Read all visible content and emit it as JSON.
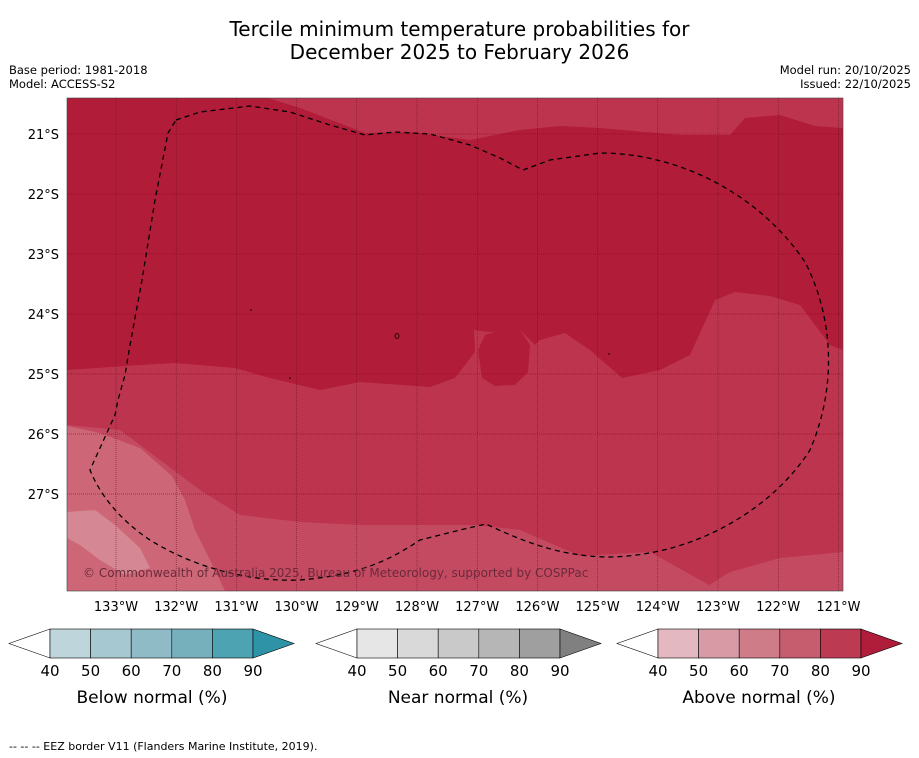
{
  "title_line1": "Tercile minimum temperature probabilities for",
  "title_line2": "December 2025 to February 2026",
  "base_period": "Base period: 1981-2018",
  "model": "Model: ACCESS-S2",
  "model_run": "Model run: 20/10/2025",
  "issued": "Issued: 22/10/2025",
  "copyright": "© Commonwealth of Australia 2025, Bureau of Meteorology, supported by COSPPac",
  "lat_labels": [
    "21°S",
    "22°S",
    "23°S",
    "24°S",
    "25°S",
    "26°S",
    "27°S"
  ],
  "lon_labels": [
    "133°W",
    "132°W",
    "131°W",
    "130°W",
    "129°W",
    "128°W",
    "127°W",
    "126°W",
    "125°W",
    "124°W",
    "123°W",
    "122°W",
    "121°W"
  ],
  "legends": [
    {
      "label": "Below normal (%)",
      "ticks": [
        "40",
        "50",
        "60",
        "70",
        "80",
        "90"
      ],
      "colors": [
        "#bfd5dc",
        "#a6c8d0",
        "#8ebbc6",
        "#76b0bd",
        "#4ea3b2",
        "#2e93a6"
      ]
    },
    {
      "label": "Near normal (%)",
      "ticks": [
        "40",
        "50",
        "60",
        "70",
        "80",
        "90"
      ],
      "colors": [
        "#e6e6e6",
        "#d9d9d9",
        "#c9c9c9",
        "#b6b6b6",
        "#9f9f9f",
        "#808080"
      ]
    },
    {
      "label": "Above normal (%)",
      "ticks": [
        "40",
        "50",
        "60",
        "70",
        "80",
        "90"
      ],
      "colors": [
        "#e4b8c1",
        "#d89aa5",
        "#cf7c89",
        "#c65d6e",
        "#bc3a52",
        "#b01d3a"
      ]
    }
  ],
  "map_colors": {
    "band80": "#b11c38",
    "band70": "#bd344f",
    "band60": "#c44a62",
    "band50": "#cd6777",
    "band40": "#d68794"
  },
  "footnote": "--  --  -- EEZ border V11 (Flanders Marine Institute, 2019)."
}
